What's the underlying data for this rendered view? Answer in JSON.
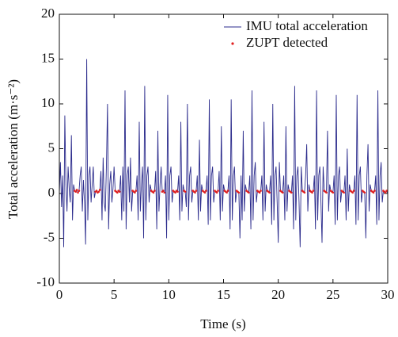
{
  "chart_data": {
    "type": "line",
    "xlabel": "Time (s)",
    "ylabel": "Total acceleration (m·s⁻²)",
    "xlim": [
      0,
      30
    ],
    "xticks": [
      0,
      5,
      10,
      15,
      20,
      25,
      30
    ],
    "ylim": [
      -10,
      20
    ],
    "yticks": [
      -10,
      -5,
      0,
      5,
      10,
      15,
      20
    ],
    "legend": "upper right",
    "series": [
      {
        "name": "IMU total acceleration",
        "color": "#2b2b8c",
        "kind": "line",
        "x": [
          0,
          0.1,
          0.2,
          0.3,
          0.4,
          0.5,
          0.6,
          0.7,
          0.8,
          0.9,
          1,
          1.1,
          1.2,
          1.3,
          1.4,
          1.5,
          1.6,
          1.7,
          1.8,
          1.9,
          2,
          2.1,
          2.2,
          2.3,
          2.4,
          2.5,
          2.6,
          2.7,
          2.8,
          2.9,
          3,
          3.1,
          3.2,
          3.3,
          3.4,
          3.5,
          3.6,
          3.7,
          3.8,
          3.9,
          4,
          4.1,
          4.2,
          4.3,
          4.4,
          4.5,
          4.6,
          4.7,
          4.8,
          4.9,
          5,
          5.1,
          5.2,
          5.3,
          5.4,
          5.5,
          5.6,
          5.7,
          5.8,
          5.9,
          6,
          6.1,
          6.2,
          6.3,
          6.4,
          6.5,
          6.6,
          6.7,
          6.8,
          6.9,
          7,
          7.1,
          7.2,
          7.3,
          7.4,
          7.5,
          7.6,
          7.7,
          7.8,
          7.9,
          8,
          8.1,
          8.2,
          8.3,
          8.4,
          8.5,
          8.6,
          8.7,
          8.8,
          8.9,
          9,
          9.1,
          9.2,
          9.3,
          9.4,
          9.5,
          9.6,
          9.7,
          9.8,
          9.9,
          10,
          10.1,
          10.2,
          10.3,
          10.4,
          10.5,
          10.6,
          10.7,
          10.8,
          10.9,
          11,
          11.1,
          11.2,
          11.3,
          11.4,
          11.5,
          11.6,
          11.7,
          11.8,
          11.9,
          12,
          12.1,
          12.2,
          12.3,
          12.4,
          12.5,
          12.6,
          12.7,
          12.8,
          12.9,
          13,
          13.1,
          13.2,
          13.3,
          13.4,
          13.5,
          13.6,
          13.7,
          13.8,
          13.9,
          14,
          14.1,
          14.2,
          14.3,
          14.4,
          14.5,
          14.6,
          14.7,
          14.8,
          14.9,
          15,
          15.1,
          15.2,
          15.3,
          15.4,
          15.5,
          15.6,
          15.7,
          15.8,
          15.9,
          16,
          16.1,
          16.2,
          16.3,
          16.4,
          16.5,
          16.6,
          16.7,
          16.8,
          16.9,
          17,
          17.1,
          17.2,
          17.3,
          17.4,
          17.5,
          17.6,
          17.7,
          17.8,
          17.9,
          18,
          18.1,
          18.2,
          18.3,
          18.4,
          18.5,
          18.6,
          18.7,
          18.8,
          18.9,
          19,
          19.1,
          19.2,
          19.3,
          19.4,
          19.5,
          19.6,
          19.7,
          19.8,
          19.9,
          20,
          20.1,
          20.2,
          20.3,
          20.4,
          20.5,
          20.6,
          20.7,
          20.8,
          20.9,
          21,
          21.1,
          21.2,
          21.3,
          21.4,
          21.5,
          21.6,
          21.7,
          21.8,
          21.9,
          22,
          22.1,
          22.2,
          22.3,
          22.4,
          22.5,
          22.6,
          22.7,
          22.8,
          22.9,
          23,
          23.1,
          23.2,
          23.3,
          23.4,
          23.5,
          23.6,
          23.7,
          23.8,
          23.9,
          24,
          24.1,
          24.2,
          24.3,
          24.4,
          24.5,
          24.6,
          24.7,
          24.8,
          24.9,
          25,
          25.1,
          25.2,
          25.3,
          25.4,
          25.5,
          25.6,
          25.7,
          25.8,
          25.9,
          26,
          26.1,
          26.2,
          26.3,
          26.4,
          26.5,
          26.6,
          26.7,
          26.8,
          26.9,
          27,
          27.1,
          27.2,
          27.3,
          27.4,
          27.5,
          27.6,
          27.7,
          27.8,
          27.9,
          28,
          28.1,
          28.2,
          28.3,
          28.4,
          28.5,
          28.6,
          28.7,
          28.8,
          28.9,
          29,
          29.1,
          29.2,
          29.3,
          29.4,
          29.5,
          29.6,
          29.7,
          29.8,
          29.9,
          30
        ],
        "values": [
          0,
          3.5,
          -1.5,
          2,
          -6,
          8.7,
          1,
          -2,
          3,
          0.5,
          -1,
          6.5,
          -3,
          1,
          0.3,
          0.2,
          0.4,
          0.1,
          0.3,
          2,
          3,
          -2,
          1.5,
          -1,
          -5.7,
          15,
          -3,
          2,
          3,
          -1,
          1,
          3,
          -0.5,
          0.2,
          0.3,
          0.1,
          0.2,
          0.4,
          2.5,
          -3,
          4,
          -1,
          -2,
          3,
          10,
          -4,
          1,
          2.5,
          -1,
          0.5,
          3,
          0.3,
          0.2,
          0.1,
          0.3,
          0.2,
          2,
          -3,
          3,
          -2,
          11.5,
          -4,
          2,
          3,
          -1,
          4,
          -2,
          0.3,
          0.2,
          0.1,
          0.3,
          2,
          -3,
          8,
          -2,
          1,
          3,
          -5,
          12,
          -3,
          2,
          3,
          -1,
          1,
          0.3,
          0.2,
          0.1,
          0.3,
          2.5,
          -4,
          7,
          -2,
          1,
          3,
          0.2,
          0.3,
          0.1,
          2,
          -5,
          11,
          -3,
          2,
          3,
          -1,
          0.3,
          0.2,
          0.1,
          0.3,
          0.2,
          2,
          -3,
          8,
          -2,
          1,
          0.3,
          0.2,
          -1.5,
          10,
          -3,
          2,
          3,
          -1,
          0.3,
          0.2,
          0.1,
          0.3,
          2,
          -3,
          6,
          -2,
          1,
          0.3,
          0.2,
          0.1,
          0.3,
          2,
          -3.5,
          10.5,
          -3,
          2,
          3,
          -1,
          0.3,
          0.2,
          0.1,
          0.3,
          2.5,
          -3,
          7.5,
          -2,
          1,
          0.3,
          0.2,
          0.1,
          0.3,
          2,
          -4,
          10.5,
          -3,
          2,
          3,
          -1,
          0.3,
          0.2,
          0.1,
          -5,
          2,
          -3,
          7,
          -2,
          1,
          0.3,
          0.2,
          0.1,
          2,
          -4,
          11.5,
          -3,
          2,
          3.5,
          -1,
          0.3,
          0.2,
          0.1,
          0.3,
          2,
          -3,
          8,
          -2,
          1,
          0.3,
          0.2,
          0.1,
          2,
          -3.5,
          10,
          -3,
          2,
          3,
          -1,
          -5.5,
          3.5,
          0.3,
          0.2,
          0.1,
          2,
          -3,
          7.5,
          -2,
          1,
          0.3,
          0.2,
          0.1,
          2,
          -4,
          12,
          -3,
          2,
          3,
          -1,
          -6,
          3,
          0.3,
          0.2,
          0.1,
          2,
          5.5,
          -2,
          1,
          0.3,
          0.2,
          0.1,
          0.3,
          2,
          -4,
          11.5,
          -3,
          2,
          3,
          -1,
          -5.5,
          3,
          0.3,
          0.2,
          0.1,
          7,
          -2,
          1,
          0.3,
          0.2,
          0.1,
          2,
          -3.5,
          11,
          -3,
          2,
          3,
          -1,
          0.3,
          0.2,
          0.1,
          2,
          -3,
          5,
          -2,
          1,
          0.3,
          0.2,
          0.1,
          0.3,
          2,
          -3.5,
          11,
          -3,
          2,
          3,
          -1,
          0.3,
          0.2,
          0.1,
          -5,
          2,
          5.5,
          -2,
          1,
          0.3,
          0.2,
          0.1,
          0.3,
          2,
          -3.5,
          11.5,
          -3,
          2,
          3.5,
          -1,
          0.3,
          0.2,
          0.1,
          0.3,
          0
        ]
      },
      {
        "name": "ZUPT detected",
        "color": "#e02020",
        "kind": "scatter",
        "x": [
          1.4,
          1.5,
          1.6,
          1.7,
          1.8,
          3.3,
          3.4,
          3.5,
          3.6,
          3.7,
          5.1,
          5.2,
          5.3,
          5.4,
          5.5,
          6.7,
          6.8,
          6.9,
          7,
          8.4,
          8.5,
          8.6,
          8.7,
          9.4,
          9.5,
          9.6,
          10.4,
          10.5,
          10.6,
          10.7,
          10.8,
          11.4,
          11.5,
          12.2,
          12.3,
          12.4,
          12.5,
          13.1,
          13.2,
          13.3,
          13.4,
          14.2,
          14.3,
          14.4,
          14.5,
          15.1,
          15.2,
          15.3,
          15.4,
          16.2,
          16.3,
          16.4,
          17.1,
          17.2,
          17.3,
          18.1,
          18.2,
          18.3,
          18.4,
          19,
          19.1,
          19.2,
          20.2,
          20.3,
          20.4,
          21,
          21.1,
          21.2,
          22.2,
          22.3,
          22.4,
          22.9,
          23,
          23.1,
          23.2,
          24.2,
          24.3,
          24.4,
          24.8,
          24.9,
          25,
          25.8,
          25.9,
          26,
          26.6,
          26.7,
          26.8,
          26.9,
          27.7,
          27.8,
          27.9,
          28.5,
          28.6,
          28.7,
          28.8,
          29.6,
          29.7,
          29.8,
          29.9
        ],
        "values": [
          0.3,
          0.2,
          0.4,
          0.1,
          0.3,
          0.2,
          0.3,
          0.1,
          0.2,
          0.4,
          0.3,
          0.2,
          0.1,
          0.3,
          0.2,
          0.3,
          0.2,
          0.1,
          0.3,
          0.3,
          0.2,
          0.1,
          0.3,
          0.2,
          0.3,
          0.1,
          0.3,
          0.2,
          0.1,
          0.3,
          0.2,
          0.3,
          0.2,
          0.3,
          0.2,
          0.1,
          0.3,
          0.3,
          0.2,
          0.1,
          0.3,
          0.3,
          0.2,
          0.1,
          0.3,
          0.3,
          0.2,
          0.1,
          0.3,
          0.3,
          0.2,
          0.1,
          0.3,
          0.2,
          0.1,
          0.3,
          0.2,
          0.1,
          0.3,
          0.3,
          0.2,
          0.1,
          0.3,
          0.2,
          0.1,
          0.3,
          0.2,
          0.1,
          0.3,
          0.2,
          0.1,
          0.3,
          0.2,
          0.1,
          0.3,
          0.3,
          0.2,
          0.1,
          0.3,
          0.2,
          0.1,
          0.3,
          0.2,
          0.1,
          0.3,
          0.2,
          0.1,
          0.3,
          0.3,
          0.2,
          0.1,
          0.3,
          0.2,
          0.1,
          0.3,
          0.3,
          0.2,
          0.1,
          0.3
        ]
      }
    ]
  }
}
